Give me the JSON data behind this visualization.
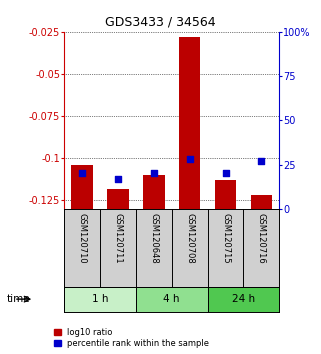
{
  "title": "GDS3433 / 34564",
  "samples": [
    "GSM120710",
    "GSM120711",
    "GSM120648",
    "GSM120708",
    "GSM120715",
    "GSM120716"
  ],
  "log10_ratio": [
    -0.104,
    -0.118,
    -0.11,
    -0.028,
    -0.113,
    -0.122
  ],
  "percentile_rank": [
    20,
    17,
    20,
    28,
    20,
    27
  ],
  "groups": [
    {
      "label": "1 h",
      "indices": [
        0,
        1
      ],
      "color": "#c8f0c8"
    },
    {
      "label": "4 h",
      "indices": [
        2,
        3
      ],
      "color": "#90e090"
    },
    {
      "label": "24 h",
      "indices": [
        4,
        5
      ],
      "color": "#50c850"
    }
  ],
  "ylim_left": [
    -0.13,
    -0.025
  ],
  "ylim_right": [
    0,
    100
  ],
  "bar_color": "#bb0000",
  "dot_color": "#0000cc",
  "left_yticks": [
    -0.025,
    -0.05,
    -0.075,
    -0.1,
    -0.125
  ],
  "right_yticks": [
    0,
    25,
    50,
    75,
    100
  ],
  "bar_bottom": -0.13,
  "background_color": "#ffffff",
  "label_area_color": "#d0d0d0"
}
